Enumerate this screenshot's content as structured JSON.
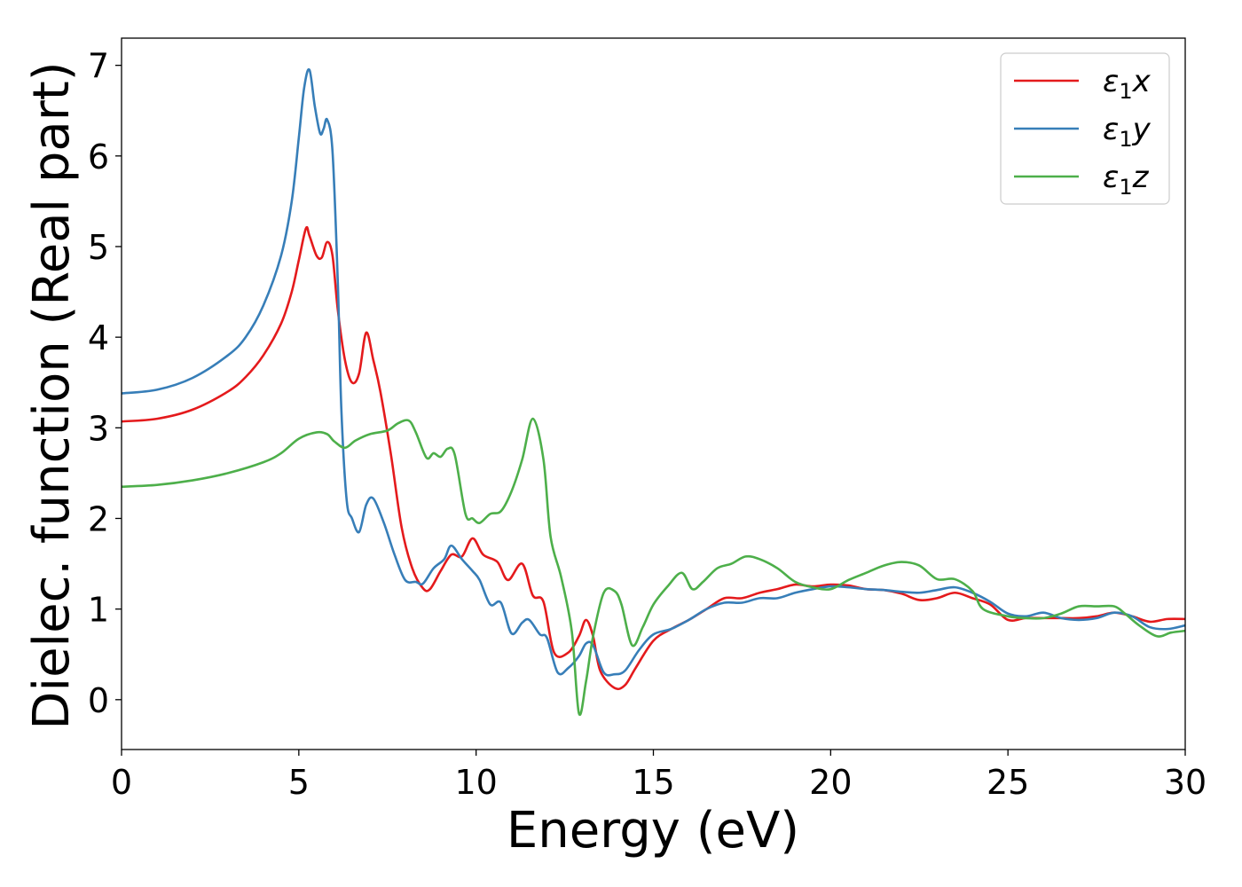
{
  "chart_data": {
    "type": "line",
    "title": "",
    "xlabel": "Energy (eV)",
    "ylabel": "Dielec. function (Real part)",
    "xlim": [
      0,
      30
    ],
    "ylim": [
      -0.55,
      7.3
    ],
    "xticks": [
      0,
      5,
      10,
      15,
      20,
      25,
      30
    ],
    "yticks": [
      0,
      1,
      2,
      3,
      4,
      5,
      6,
      7
    ],
    "grid": false,
    "legend_position": "top-right",
    "series": [
      {
        "name": "ε₁x",
        "legend_base": "ε",
        "legend_sub": "1",
        "legend_suffix": "x",
        "color": "#e41a1c",
        "points": [
          [
            0,
            3.07
          ],
          [
            1,
            3.1
          ],
          [
            2,
            3.2
          ],
          [
            3,
            3.4
          ],
          [
            3.5,
            3.56
          ],
          [
            4,
            3.8
          ],
          [
            4.5,
            4.15
          ],
          [
            4.8,
            4.5
          ],
          [
            5.0,
            4.85
          ],
          [
            5.2,
            5.2
          ],
          [
            5.3,
            5.12
          ],
          [
            5.5,
            4.9
          ],
          [
            5.65,
            4.88
          ],
          [
            5.8,
            5.05
          ],
          [
            5.95,
            4.9
          ],
          [
            6.1,
            4.3
          ],
          [
            6.3,
            3.75
          ],
          [
            6.5,
            3.5
          ],
          [
            6.7,
            3.6
          ],
          [
            6.9,
            4.05
          ],
          [
            7.1,
            3.75
          ],
          [
            7.3,
            3.4
          ],
          [
            7.6,
            2.7
          ],
          [
            7.9,
            1.9
          ],
          [
            8.2,
            1.45
          ],
          [
            8.5,
            1.23
          ],
          [
            8.7,
            1.22
          ],
          [
            9.0,
            1.42
          ],
          [
            9.3,
            1.6
          ],
          [
            9.6,
            1.58
          ],
          [
            9.9,
            1.78
          ],
          [
            10.2,
            1.6
          ],
          [
            10.6,
            1.52
          ],
          [
            10.9,
            1.32
          ],
          [
            11.3,
            1.5
          ],
          [
            11.6,
            1.15
          ],
          [
            11.9,
            1.08
          ],
          [
            12.2,
            0.52
          ],
          [
            12.6,
            0.52
          ],
          [
            12.9,
            0.7
          ],
          [
            13.1,
            0.88
          ],
          [
            13.3,
            0.7
          ],
          [
            13.5,
            0.32
          ],
          [
            13.9,
            0.13
          ],
          [
            14.2,
            0.16
          ],
          [
            14.5,
            0.35
          ],
          [
            15.0,
            0.65
          ],
          [
            15.5,
            0.78
          ],
          [
            16,
            0.88
          ],
          [
            16.5,
            1.0
          ],
          [
            17,
            1.12
          ],
          [
            17.5,
            1.12
          ],
          [
            18,
            1.18
          ],
          [
            18.5,
            1.22
          ],
          [
            19,
            1.27
          ],
          [
            19.5,
            1.25
          ],
          [
            20,
            1.27
          ],
          [
            20.5,
            1.26
          ],
          [
            21,
            1.22
          ],
          [
            21.5,
            1.21
          ],
          [
            22,
            1.17
          ],
          [
            22.5,
            1.1
          ],
          [
            23,
            1.12
          ],
          [
            23.5,
            1.18
          ],
          [
            24,
            1.12
          ],
          [
            24.5,
            1.05
          ],
          [
            25,
            0.88
          ],
          [
            25.5,
            0.9
          ],
          [
            26,
            0.9
          ],
          [
            26.5,
            0.9
          ],
          [
            27,
            0.9
          ],
          [
            27.5,
            0.92
          ],
          [
            28,
            0.96
          ],
          [
            28.5,
            0.92
          ],
          [
            29,
            0.86
          ],
          [
            29.5,
            0.89
          ],
          [
            30,
            0.89
          ]
        ]
      },
      {
        "name": "ε₁y",
        "legend_base": "ε",
        "legend_sub": "1",
        "legend_suffix": "y",
        "color": "#377eb8",
        "points": [
          [
            0,
            3.38
          ],
          [
            1,
            3.42
          ],
          [
            2,
            3.55
          ],
          [
            3,
            3.8
          ],
          [
            3.5,
            4.0
          ],
          [
            4,
            4.35
          ],
          [
            4.5,
            4.9
          ],
          [
            4.8,
            5.5
          ],
          [
            5.0,
            6.2
          ],
          [
            5.15,
            6.75
          ],
          [
            5.3,
            6.95
          ],
          [
            5.45,
            6.55
          ],
          [
            5.6,
            6.25
          ],
          [
            5.7,
            6.3
          ],
          [
            5.8,
            6.4
          ],
          [
            5.95,
            6.05
          ],
          [
            6.1,
            4.6
          ],
          [
            6.2,
            3.2
          ],
          [
            6.35,
            2.2
          ],
          [
            6.5,
            2.0
          ],
          [
            6.7,
            1.85
          ],
          [
            6.9,
            2.15
          ],
          [
            7.1,
            2.22
          ],
          [
            7.4,
            1.95
          ],
          [
            7.7,
            1.6
          ],
          [
            8.0,
            1.32
          ],
          [
            8.3,
            1.3
          ],
          [
            8.5,
            1.28
          ],
          [
            8.8,
            1.45
          ],
          [
            9.1,
            1.55
          ],
          [
            9.3,
            1.7
          ],
          [
            9.6,
            1.55
          ],
          [
            9.9,
            1.42
          ],
          [
            10.1,
            1.32
          ],
          [
            10.4,
            1.05
          ],
          [
            10.7,
            1.07
          ],
          [
            11.0,
            0.73
          ],
          [
            11.3,
            0.85
          ],
          [
            11.5,
            0.88
          ],
          [
            11.8,
            0.72
          ],
          [
            12.0,
            0.68
          ],
          [
            12.3,
            0.3
          ],
          [
            12.6,
            0.35
          ],
          [
            12.9,
            0.48
          ],
          [
            13.1,
            0.62
          ],
          [
            13.3,
            0.6
          ],
          [
            13.6,
            0.3
          ],
          [
            13.9,
            0.28
          ],
          [
            14.2,
            0.32
          ],
          [
            14.6,
            0.55
          ],
          [
            15,
            0.72
          ],
          [
            15.5,
            0.78
          ],
          [
            16,
            0.88
          ],
          [
            16.5,
            1.0
          ],
          [
            17,
            1.07
          ],
          [
            17.5,
            1.07
          ],
          [
            18,
            1.12
          ],
          [
            18.5,
            1.12
          ],
          [
            19,
            1.18
          ],
          [
            19.5,
            1.22
          ],
          [
            20,
            1.25
          ],
          [
            20.5,
            1.24
          ],
          [
            21,
            1.22
          ],
          [
            21.5,
            1.21
          ],
          [
            22,
            1.19
          ],
          [
            22.5,
            1.18
          ],
          [
            23,
            1.21
          ],
          [
            23.5,
            1.24
          ],
          [
            24,
            1.18
          ],
          [
            24.5,
            1.08
          ],
          [
            25,
            0.95
          ],
          [
            25.5,
            0.92
          ],
          [
            26,
            0.96
          ],
          [
            26.5,
            0.9
          ],
          [
            27,
            0.88
          ],
          [
            27.5,
            0.9
          ],
          [
            28,
            0.96
          ],
          [
            28.5,
            0.92
          ],
          [
            29,
            0.8
          ],
          [
            29.5,
            0.78
          ],
          [
            30,
            0.82
          ]
        ]
      },
      {
        "name": "ε₁z",
        "legend_base": "ε",
        "legend_sub": "1",
        "legend_suffix": "z",
        "color": "#4daf4a",
        "points": [
          [
            0,
            2.35
          ],
          [
            1,
            2.37
          ],
          [
            2,
            2.42
          ],
          [
            3,
            2.5
          ],
          [
            4,
            2.62
          ],
          [
            4.5,
            2.72
          ],
          [
            5.0,
            2.88
          ],
          [
            5.5,
            2.95
          ],
          [
            5.8,
            2.93
          ],
          [
            6.0,
            2.85
          ],
          [
            6.3,
            2.78
          ],
          [
            6.6,
            2.86
          ],
          [
            7.0,
            2.93
          ],
          [
            7.5,
            2.97
          ],
          [
            7.8,
            3.05
          ],
          [
            8.1,
            3.08
          ],
          [
            8.3,
            2.95
          ],
          [
            8.6,
            2.67
          ],
          [
            8.8,
            2.72
          ],
          [
            9.0,
            2.68
          ],
          [
            9.2,
            2.77
          ],
          [
            9.4,
            2.7
          ],
          [
            9.7,
            2.05
          ],
          [
            9.9,
            2.0
          ],
          [
            10.1,
            1.95
          ],
          [
            10.4,
            2.05
          ],
          [
            10.7,
            2.08
          ],
          [
            11.0,
            2.3
          ],
          [
            11.3,
            2.65
          ],
          [
            11.6,
            3.1
          ],
          [
            11.9,
            2.65
          ],
          [
            12.1,
            1.8
          ],
          [
            12.4,
            1.35
          ],
          [
            12.7,
            0.75
          ],
          [
            12.9,
            -0.15
          ],
          [
            13.1,
            0.2
          ],
          [
            13.3,
            0.7
          ],
          [
            13.6,
            1.18
          ],
          [
            13.9,
            1.2
          ],
          [
            14.1,
            1.05
          ],
          [
            14.4,
            0.6
          ],
          [
            14.7,
            0.8
          ],
          [
            15.0,
            1.05
          ],
          [
            15.4,
            1.25
          ],
          [
            15.8,
            1.4
          ],
          [
            16.1,
            1.22
          ],
          [
            16.4,
            1.3
          ],
          [
            16.8,
            1.45
          ],
          [
            17.2,
            1.5
          ],
          [
            17.6,
            1.58
          ],
          [
            18.0,
            1.55
          ],
          [
            18.5,
            1.45
          ],
          [
            19.0,
            1.3
          ],
          [
            19.5,
            1.24
          ],
          [
            20.0,
            1.22
          ],
          [
            20.5,
            1.32
          ],
          [
            21.0,
            1.4
          ],
          [
            21.5,
            1.48
          ],
          [
            22.0,
            1.52
          ],
          [
            22.5,
            1.48
          ],
          [
            23.0,
            1.33
          ],
          [
            23.5,
            1.33
          ],
          [
            24.0,
            1.2
          ],
          [
            24.3,
            1.0
          ],
          [
            25.0,
            0.92
          ],
          [
            25.5,
            0.9
          ],
          [
            26.0,
            0.9
          ],
          [
            26.5,
            0.95
          ],
          [
            27.0,
            1.03
          ],
          [
            27.5,
            1.03
          ],
          [
            28.0,
            1.03
          ],
          [
            28.3,
            0.95
          ],
          [
            28.7,
            0.82
          ],
          [
            29.2,
            0.7
          ],
          [
            29.6,
            0.74
          ],
          [
            30,
            0.76
          ]
        ]
      }
    ]
  }
}
